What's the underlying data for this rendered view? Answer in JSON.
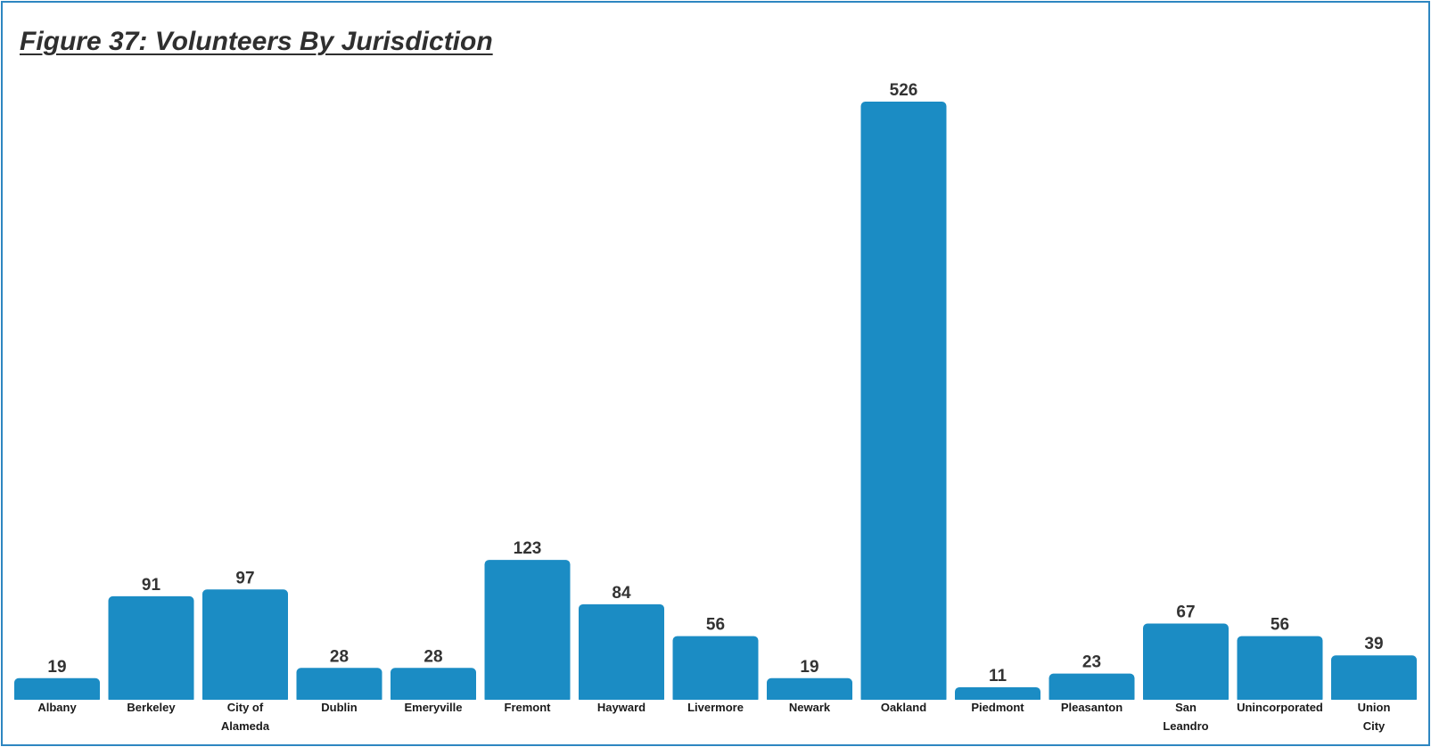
{
  "title": "Figure 37: Volunteers By Jurisdiction",
  "colors": {
    "bar": "#1b8cc4",
    "border": "#2e86c1"
  },
  "chart_data": {
    "type": "bar",
    "title": "Figure 37: Volunteers By Jurisdiction",
    "xlabel": "",
    "ylabel": "",
    "grid": false,
    "legend": "none",
    "ylim": [
      0,
      526
    ],
    "categories": [
      [
        "Albany"
      ],
      [
        "Berkeley"
      ],
      [
        "City of",
        "Alameda"
      ],
      [
        "Dublin"
      ],
      [
        "Emeryville"
      ],
      [
        "Fremont"
      ],
      [
        "Hayward"
      ],
      [
        "Livermore"
      ],
      [
        "Newark"
      ],
      [
        "Oakland"
      ],
      [
        "Piedmont"
      ],
      [
        "Pleasanton"
      ],
      [
        "San",
        "Leandro"
      ],
      [
        "Unincorporated"
      ],
      [
        "Union",
        "City"
      ]
    ],
    "values": [
      19,
      91,
      97,
      28,
      28,
      123,
      84,
      56,
      19,
      526,
      11,
      23,
      67,
      56,
      39
    ]
  }
}
